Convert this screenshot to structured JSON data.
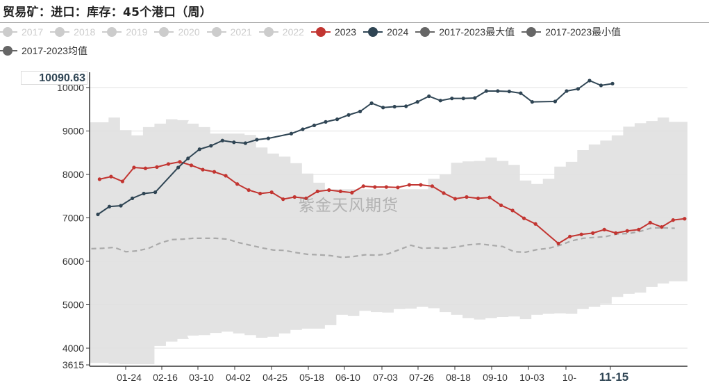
{
  "title": "贸易矿：进口：库存：45个港口（周）",
  "watermark": "紫金天风期货",
  "legend": [
    {
      "label": "2017",
      "color": "#cccccc",
      "active": false
    },
    {
      "label": "2018",
      "color": "#cccccc",
      "active": false
    },
    {
      "label": "2019",
      "color": "#cccccc",
      "active": false
    },
    {
      "label": "2020",
      "color": "#cccccc",
      "active": false
    },
    {
      "label": "2021",
      "color": "#cccccc",
      "active": false
    },
    {
      "label": "2022",
      "color": "#cccccc",
      "active": false
    },
    {
      "label": "2023",
      "color": "#c23531",
      "active": true
    },
    {
      "label": "2024",
      "color": "#2f4554",
      "active": true
    },
    {
      "label": "2017-2023最大值",
      "color": "#666666",
      "active": true
    },
    {
      "label": "2017-2023最小值",
      "color": "#666666",
      "active": true
    },
    {
      "label": "2017-2023均值",
      "color": "#666666",
      "active": true
    }
  ],
  "axis_pointer": {
    "y_value": "10090.63",
    "x_value": "11-15"
  },
  "chart_data": {
    "type": "line",
    "title": "贸易矿：进口：库存：45个港口（周）",
    "xlabel": "",
    "ylabel": "",
    "ylim": [
      3615,
      10300
    ],
    "y_ticks": [
      "3615",
      "4000",
      "5000",
      "6000",
      "7000",
      "8000",
      "9000",
      "10000"
    ],
    "x_ticks": [
      "01-24",
      "02-16",
      "03-10",
      "04-02",
      "04-25",
      "05-18",
      "06-10",
      "07-03",
      "07-26",
      "08-18",
      "09-10",
      "10-03",
      "10-",
      "11-15"
    ],
    "grid": true,
    "legend_position": "top-left",
    "series": [
      {
        "name": "2023",
        "color": "#c23531",
        "x": [
          "01-06",
          "01-13",
          "01-20",
          "01-27",
          "02-03",
          "02-10",
          "02-17",
          "02-24",
          "03-03",
          "03-10",
          "03-17",
          "03-24",
          "03-31",
          "04-07",
          "04-14",
          "04-21",
          "04-28",
          "05-05",
          "05-12",
          "05-19",
          "05-26",
          "06-02",
          "06-09",
          "06-16",
          "06-23",
          "06-30",
          "07-07",
          "07-14",
          "07-21",
          "07-28",
          "08-04",
          "08-11",
          "08-18",
          "08-25",
          "09-01",
          "09-08",
          "09-15",
          "09-22",
          "09-29",
          "10-13",
          "10-20",
          "10-27",
          "11-03",
          "11-10",
          "11-17",
          "11-24",
          "12-01",
          "12-08",
          "12-15",
          "12-22",
          "12-29"
        ],
        "values": [
          7890,
          7950,
          7840,
          8160,
          8140,
          8170,
          8240,
          8290,
          8210,
          8110,
          8060,
          7970,
          7780,
          7640,
          7560,
          7590,
          7430,
          7480,
          7450,
          7610,
          7640,
          7610,
          7580,
          7730,
          7710,
          7710,
          7700,
          7760,
          7760,
          7730,
          7570,
          7440,
          7480,
          7450,
          7470,
          7290,
          7170,
          6990,
          6860,
          6410,
          6570,
          6620,
          6650,
          6730,
          6650,
          6700,
          6730,
          6890,
          6790,
          6950,
          6980
        ]
      },
      {
        "name": "2024",
        "color": "#2f4554",
        "x": [
          "01-05",
          "01-12",
          "01-19",
          "01-26",
          "02-02",
          "02-09",
          "02-23",
          "03-01",
          "03-08",
          "03-15",
          "03-22",
          "03-29",
          "04-05",
          "04-12",
          "04-19",
          "05-03",
          "05-10",
          "05-17",
          "05-24",
          "05-31",
          "06-07",
          "06-14",
          "06-21",
          "06-28",
          "07-05",
          "07-12",
          "07-19",
          "07-26",
          "08-02",
          "08-09",
          "08-16",
          "08-23",
          "08-30",
          "09-06",
          "09-13",
          "09-20",
          "09-27",
          "10-11",
          "10-18",
          "10-25",
          "11-01",
          "11-08",
          "11-15"
        ],
        "values": [
          7080,
          7260,
          7280,
          7450,
          7560,
          7590,
          8160,
          8370,
          8580,
          8660,
          8780,
          8740,
          8720,
          8800,
          8830,
          8940,
          9040,
          9130,
          9210,
          9270,
          9370,
          9450,
          9640,
          9540,
          9560,
          9570,
          9670,
          9800,
          9700,
          9750,
          9750,
          9760,
          9920,
          9920,
          9910,
          9870,
          9670,
          9680,
          9920,
          9970,
          10160,
          10050,
          10090.63
        ]
      },
      {
        "name": "2017-2023最大值",
        "color": "#e3e3e3",
        "x": [
          "01-01",
          "01-08",
          "01-15",
          "01-22",
          "01-29",
          "02-05",
          "02-12",
          "02-19",
          "02-26",
          "03-04",
          "03-11",
          "03-18",
          "03-25",
          "04-01",
          "04-08",
          "04-15",
          "04-22",
          "04-29",
          "05-06",
          "05-13",
          "05-20",
          "05-27",
          "06-03",
          "06-10",
          "06-17",
          "06-24",
          "07-01",
          "07-08",
          "07-15",
          "07-22",
          "07-29",
          "08-05",
          "08-12",
          "08-19",
          "08-26",
          "09-02",
          "09-09",
          "09-16",
          "09-23",
          "09-30",
          "10-07",
          "10-14",
          "10-21",
          "10-28",
          "11-04",
          "11-11",
          "11-18",
          "11-25",
          "12-02",
          "12-09",
          "12-16",
          "12-23"
        ],
        "values": [
          9200,
          9200,
          9310,
          9020,
          8900,
          9090,
          9170,
          9270,
          9250,
          9170,
          9090,
          8940,
          8940,
          8940,
          8910,
          8620,
          8480,
          8410,
          8260,
          8020,
          7810,
          7660,
          7660,
          7660,
          7660,
          7660,
          7660,
          7660,
          7660,
          7660,
          7900,
          8000,
          8270,
          8300,
          8310,
          8390,
          8310,
          8220,
          7860,
          7780,
          7900,
          8180,
          8290,
          8560,
          8690,
          8780,
          8900,
          9100,
          9180,
          9230,
          9310,
          9210
        ]
      },
      {
        "name": "2017-2023最小值",
        "color": "#e3e3e3",
        "x": [
          "01-01",
          "01-08",
          "01-15",
          "01-22",
          "01-29",
          "02-05",
          "02-12",
          "02-19",
          "02-26",
          "03-04",
          "03-11",
          "03-18",
          "03-25",
          "04-01",
          "04-08",
          "04-15",
          "04-22",
          "04-29",
          "05-06",
          "05-13",
          "05-20",
          "05-27",
          "06-03",
          "06-10",
          "06-17",
          "06-24",
          "07-01",
          "07-08",
          "07-15",
          "07-22",
          "07-29",
          "08-05",
          "08-12",
          "08-19",
          "08-26",
          "09-02",
          "09-09",
          "09-16",
          "09-23",
          "09-30",
          "10-07",
          "10-14",
          "10-21",
          "10-28",
          "11-04",
          "11-11",
          "11-18",
          "11-25",
          "12-02",
          "12-09",
          "12-16",
          "12-23"
        ],
        "values": [
          3660,
          3660,
          3640,
          3630,
          3630,
          3630,
          4050,
          4150,
          4210,
          4290,
          4300,
          4350,
          4380,
          4340,
          4300,
          4240,
          4260,
          4340,
          4420,
          4450,
          4450,
          4530,
          4770,
          4740,
          4860,
          4830,
          4820,
          4900,
          4910,
          4950,
          4920,
          4830,
          4770,
          4690,
          4660,
          4690,
          4720,
          4730,
          4670,
          4770,
          4790,
          4800,
          4790,
          4900,
          4950,
          5020,
          5180,
          5250,
          5280,
          5410,
          5490,
          5540
        ]
      },
      {
        "name": "2017-2023均值",
        "color": "#aaaaaa",
        "x": [
          "01-01",
          "01-08",
          "01-15",
          "01-22",
          "01-29",
          "02-05",
          "02-12",
          "02-19",
          "02-26",
          "03-04",
          "03-11",
          "03-18",
          "03-25",
          "04-01",
          "04-08",
          "04-15",
          "04-22",
          "04-29",
          "05-06",
          "05-13",
          "05-20",
          "05-27",
          "06-03",
          "06-10",
          "06-17",
          "06-24",
          "07-01",
          "07-08",
          "07-15",
          "07-22",
          "07-29",
          "08-05",
          "08-12",
          "08-19",
          "08-26",
          "09-02",
          "09-09",
          "09-16",
          "09-23",
          "09-30",
          "10-07",
          "10-14",
          "10-21",
          "10-28",
          "11-04",
          "11-11",
          "11-18",
          "11-25",
          "12-02",
          "12-09",
          "12-16",
          "12-23"
        ],
        "values": [
          6290,
          6300,
          6320,
          6220,
          6240,
          6300,
          6420,
          6500,
          6510,
          6530,
          6530,
          6530,
          6510,
          6430,
          6370,
          6310,
          6260,
          6250,
          6200,
          6160,
          6150,
          6130,
          6090,
          6110,
          6150,
          6140,
          6170,
          6270,
          6370,
          6300,
          6310,
          6300,
          6330,
          6380,
          6400,
          6370,
          6340,
          6220,
          6210,
          6270,
          6300,
          6370,
          6470,
          6530,
          6550,
          6570,
          6630,
          6640,
          6690,
          6770,
          6770,
          6760
        ]
      }
    ]
  }
}
